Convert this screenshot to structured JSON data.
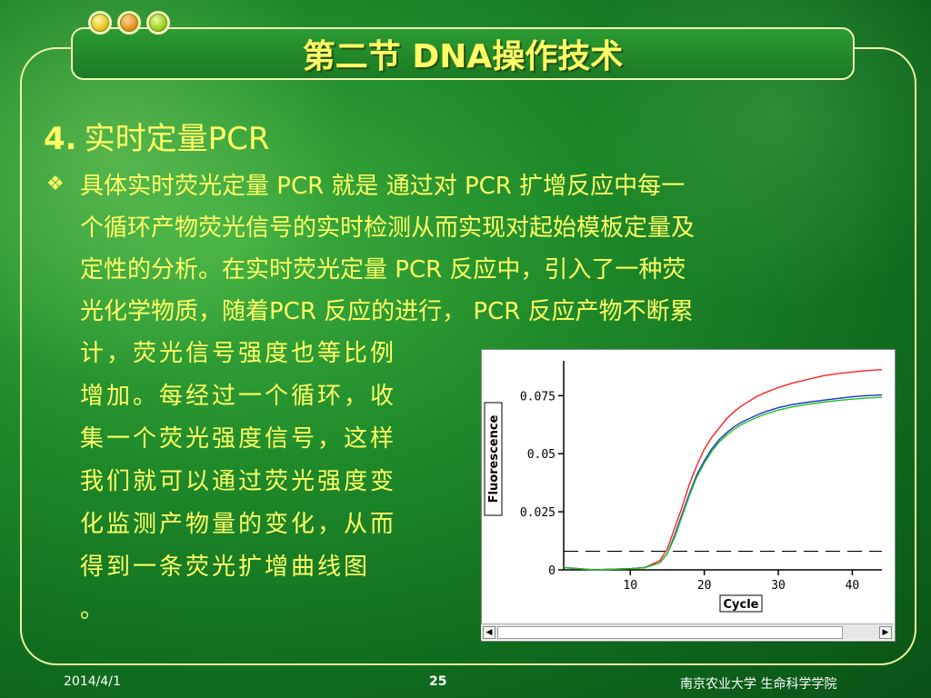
{
  "slide": {
    "title": "第二节  DNA操作技术",
    "heading_num": "4.",
    "heading_text": "实时定量PCR",
    "bullet_symbol": "❖",
    "para_lines": [
      "具体实时荧光定量 PCR 就是 通过对 PCR 扩增反应中每一",
      "个循环产物荧光信号的实时检测从而实现对起始模板定量及",
      "定性的分析。在实时荧光定量 PCR 反应中，引入了一种荧",
      "光化学物质，随着PCR 反应的进行， PCR 反应产物不断累"
    ],
    "col_lines": [
      "计，荧光信号强度也等比例",
      "增加。每经过一个循环，收",
      "集一个荧光强度信号，这样",
      "我们就可以通过荧光强度变",
      "化监测产物量的变化，从而",
      "得到一条荧光扩增曲线图",
      "。"
    ],
    "footer": {
      "date": "2014/4/1",
      "page": "25",
      "org": "南京农业大学 生命科学学院"
    }
  },
  "colors": {
    "title_text": "#ffff66",
    "body_text": "#ffff66",
    "frame": "#f0f6a0"
  },
  "chart_data": {
    "type": "line",
    "xlabel": "Cycle",
    "ylabel": "Fluorescence",
    "xlim": [
      1,
      44
    ],
    "ylim": [
      0,
      0.09
    ],
    "x_ticks": [
      "10",
      "20",
      "30",
      "40"
    ],
    "y_ticks": [
      "0",
      "0.025",
      "0.05",
      "0.075"
    ],
    "threshold": 0.008,
    "series": [
      {
        "color": "#ff2020",
        "x": [
          1,
          5,
          10,
          12,
          14,
          15,
          16,
          17,
          18,
          19,
          20,
          21,
          22,
          23,
          24,
          25,
          26,
          27,
          28,
          30,
          32,
          34,
          36,
          38,
          40,
          42,
          44
        ],
        "y": [
          0.001,
          0.0,
          0.0005,
          0.001,
          0.004,
          0.009,
          0.018,
          0.027,
          0.037,
          0.045,
          0.052,
          0.057,
          0.061,
          0.065,
          0.068,
          0.0705,
          0.0725,
          0.0745,
          0.076,
          0.0785,
          0.0805,
          0.082,
          0.0835,
          0.0845,
          0.0852,
          0.0858,
          0.0862
        ]
      },
      {
        "color": "#1f2fcf",
        "x": [
          1,
          5,
          10,
          12,
          14,
          15,
          16,
          17,
          18,
          19,
          20,
          21,
          22,
          23,
          24,
          25,
          26,
          27,
          28,
          30,
          32,
          34,
          36,
          38,
          40,
          42,
          44
        ],
        "y": [
          0.001,
          0.0,
          0.0005,
          0.001,
          0.003,
          0.007,
          0.015,
          0.024,
          0.033,
          0.041,
          0.047,
          0.052,
          0.056,
          0.059,
          0.0615,
          0.0635,
          0.065,
          0.0665,
          0.0678,
          0.0698,
          0.0712,
          0.0722,
          0.073,
          0.0738,
          0.0745,
          0.075,
          0.0753
        ]
      },
      {
        "color": "#20c020",
        "x": [
          1,
          5,
          10,
          12,
          14,
          15,
          16,
          17,
          18,
          19,
          20,
          21,
          22,
          23,
          24,
          25,
          26,
          27,
          28,
          30,
          32,
          34,
          36,
          38,
          40,
          42,
          44
        ],
        "y": [
          0.001,
          0.0,
          0.0005,
          0.001,
          0.003,
          0.007,
          0.014,
          0.023,
          0.032,
          0.04,
          0.046,
          0.051,
          0.055,
          0.058,
          0.0605,
          0.0625,
          0.064,
          0.0655,
          0.0668,
          0.0688,
          0.0702,
          0.0713,
          0.0722,
          0.0729,
          0.0735,
          0.074,
          0.0743
        ]
      }
    ]
  }
}
